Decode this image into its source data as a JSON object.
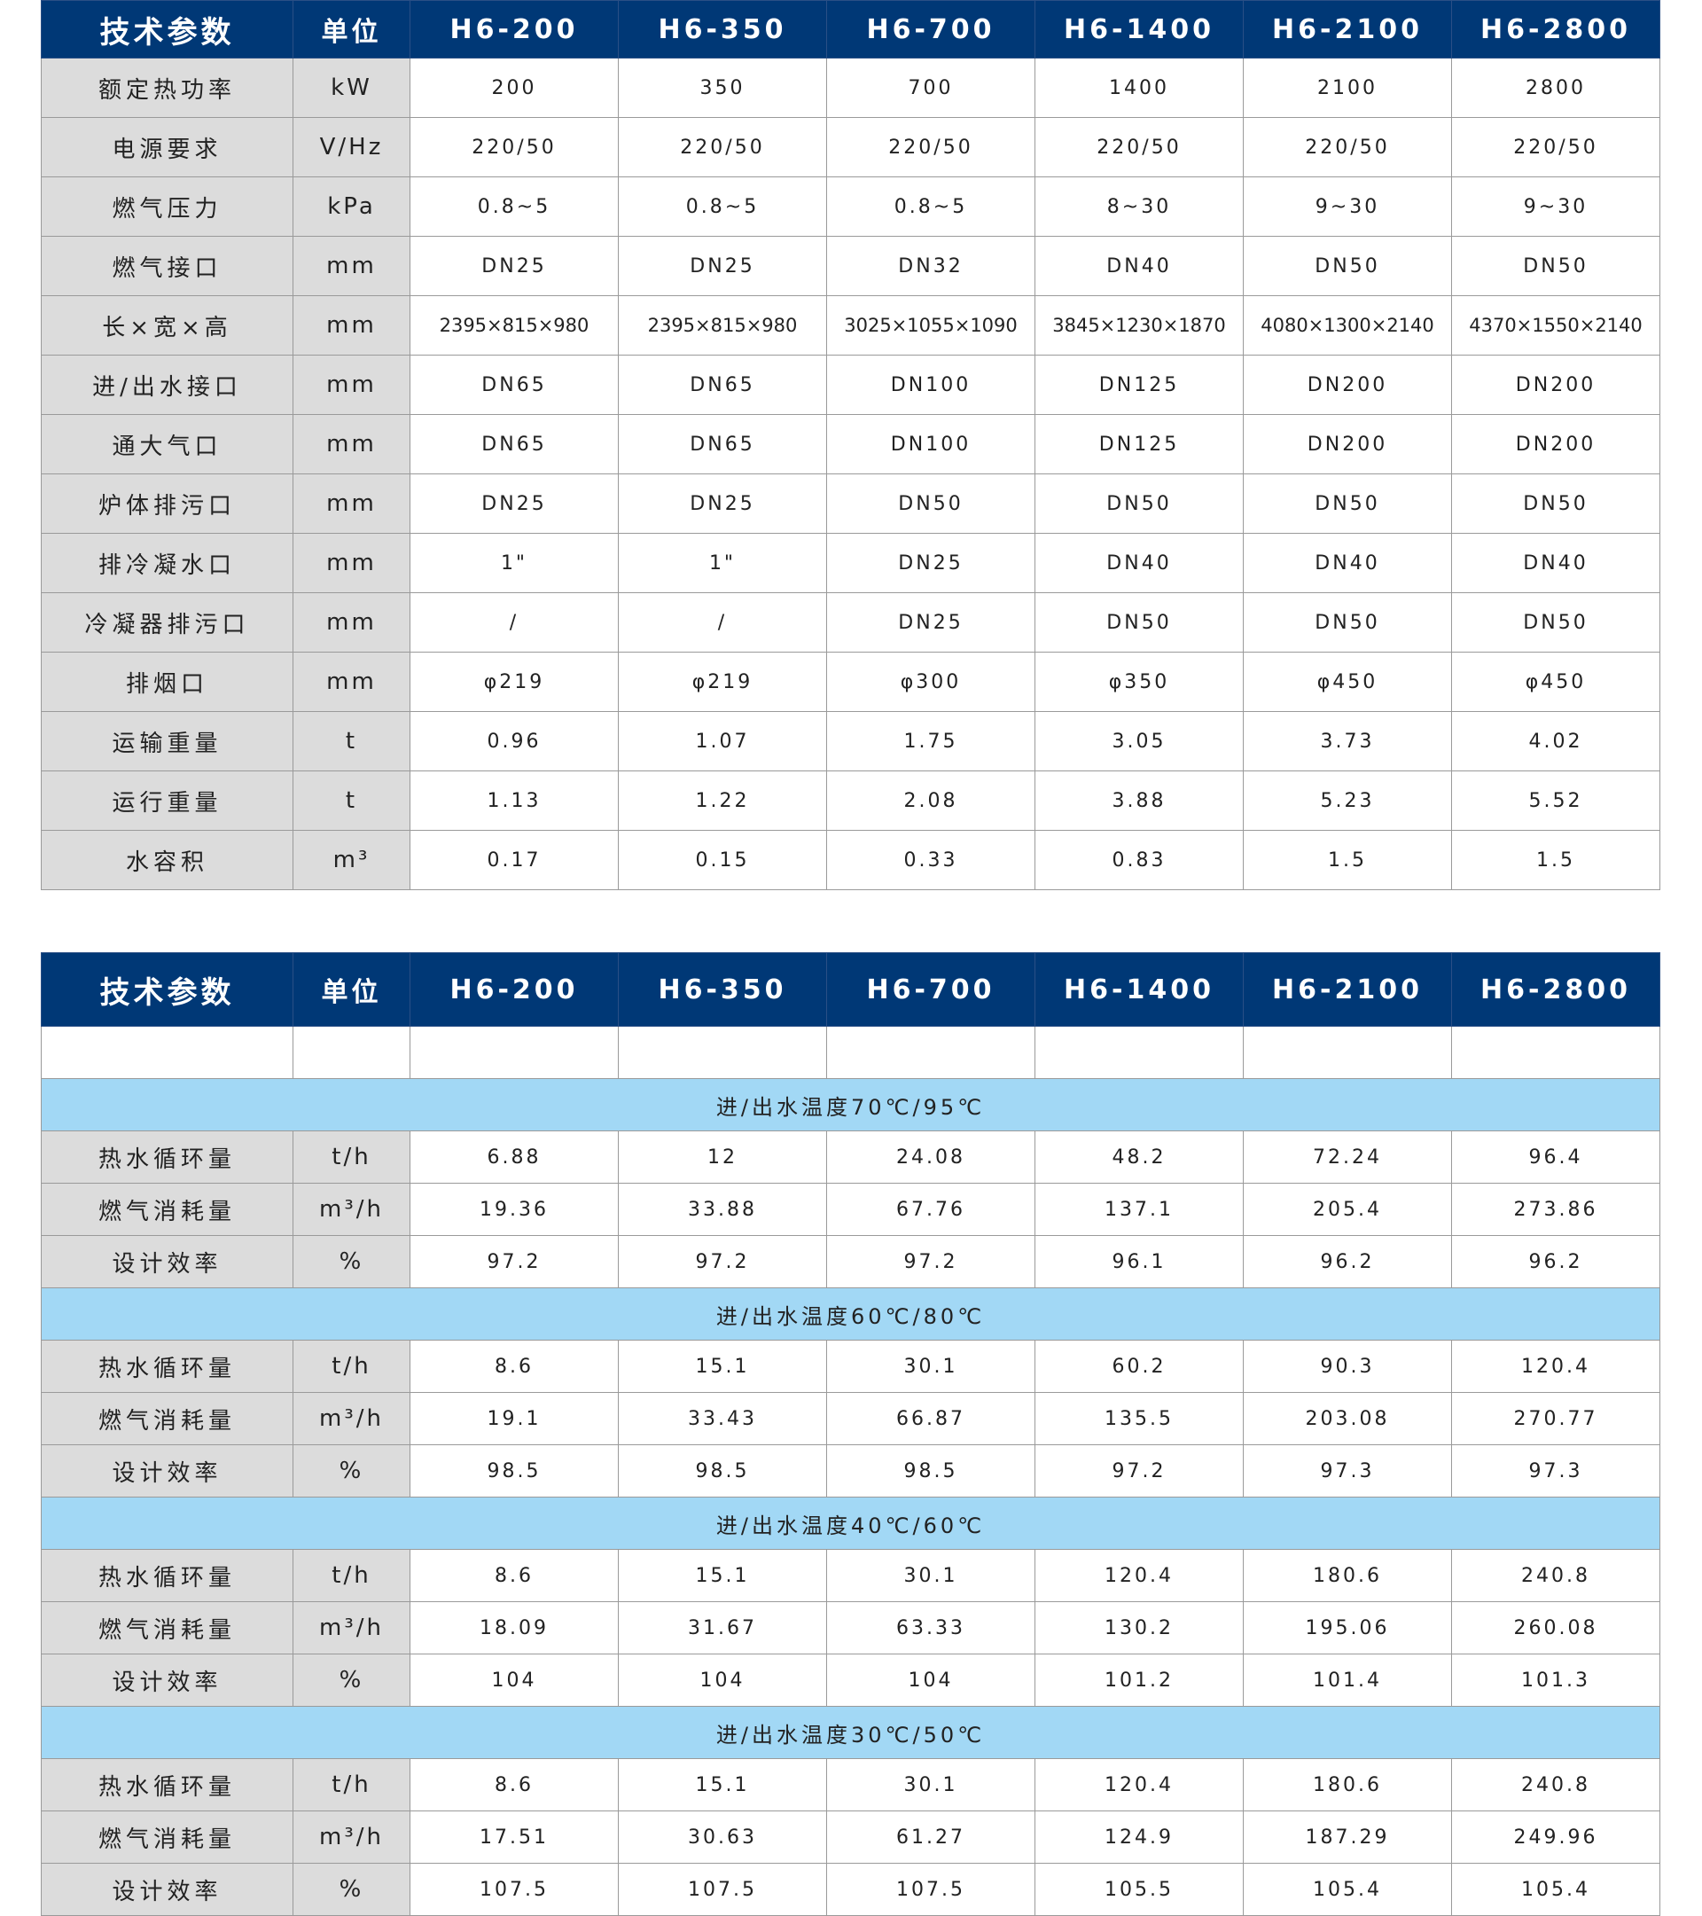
{
  "header": {
    "param_label": "技术参数",
    "unit_label": "单位",
    "models": [
      "H6-200",
      "H6-350",
      "H6-700",
      "H6-1400",
      "H6-2100",
      "H6-2800"
    ]
  },
  "table1": {
    "rows": [
      {
        "label": "额定热功率",
        "unit": "kW",
        "values": [
          "200",
          "350",
          "700",
          "1400",
          "2100",
          "2800"
        ]
      },
      {
        "label": "电源要求",
        "unit": "V/Hz",
        "values": [
          "220/50",
          "220/50",
          "220/50",
          "220/50",
          "220/50",
          "220/50"
        ]
      },
      {
        "label": "燃气压力",
        "unit": "kPa",
        "values": [
          "0.8~5",
          "0.8~5",
          "0.8~5",
          "8~30",
          "9~30",
          "9~30"
        ]
      },
      {
        "label": "燃气接口",
        "unit": "mm",
        "values": [
          "DN25",
          "DN25",
          "DN32",
          "DN40",
          "DN50",
          "DN50"
        ]
      },
      {
        "label": "长×宽×高",
        "unit": "mm",
        "values": [
          "2395×815×980",
          "2395×815×980",
          "3025×1055×1090",
          "3845×1230×1870",
          "4080×1300×2140",
          "4370×1550×2140"
        ]
      },
      {
        "label": "进/出水接口",
        "unit": "mm",
        "values": [
          "DN65",
          "DN65",
          "DN100",
          "DN125",
          "DN200",
          "DN200"
        ]
      },
      {
        "label": "通大气口",
        "unit": "mm",
        "values": [
          "DN65",
          "DN65",
          "DN100",
          "DN125",
          "DN200",
          "DN200"
        ]
      },
      {
        "label": "炉体排污口",
        "unit": "mm",
        "values": [
          "DN25",
          "DN25",
          "DN50",
          "DN50",
          "DN50",
          "DN50"
        ]
      },
      {
        "label": "排冷凝水口",
        "unit": "mm",
        "values": [
          "1\"",
          "1\"",
          "DN25",
          "DN40",
          "DN40",
          "DN40"
        ]
      },
      {
        "label": "冷凝器排污口",
        "unit": "mm",
        "values": [
          "/",
          "/",
          "DN25",
          "DN50",
          "DN50",
          "DN50"
        ]
      },
      {
        "label": "排烟口",
        "unit": "mm",
        "values": [
          "φ219",
          "φ219",
          "φ300",
          "φ350",
          "φ450",
          "φ450"
        ]
      },
      {
        "label": "运输重量",
        "unit": "t",
        "values": [
          "0.96",
          "1.07",
          "1.75",
          "3.05",
          "3.73",
          "4.02"
        ]
      },
      {
        "label": "运行重量",
        "unit": "t",
        "values": [
          "1.13",
          "1.22",
          "2.08",
          "3.88",
          "5.23",
          "5.52"
        ]
      },
      {
        "label": "水容积",
        "unit": "m³",
        "values": [
          "0.17",
          "0.15",
          "0.33",
          "0.83",
          "1.5",
          "1.5"
        ]
      }
    ]
  },
  "table2": {
    "sections": [
      {
        "title": "进/出水温度70℃/95℃",
        "rows": [
          {
            "label": "热水循环量",
            "unit": "t/h",
            "values": [
              "6.88",
              "12",
              "24.08",
              "48.2",
              "72.24",
              "96.4"
            ]
          },
          {
            "label": "燃气消耗量",
            "unit": "m³/h",
            "values": [
              "19.36",
              "33.88",
              "67.76",
              "137.1",
              "205.4",
              "273.86"
            ]
          },
          {
            "label": "设计效率",
            "unit": "%",
            "values": [
              "97.2",
              "97.2",
              "97.2",
              "96.1",
              "96.2",
              "96.2"
            ]
          }
        ]
      },
      {
        "title": "进/出水温度60℃/80℃",
        "rows": [
          {
            "label": "热水循环量",
            "unit": "t/h",
            "values": [
              "8.6",
              "15.1",
              "30.1",
              "60.2",
              "90.3",
              "120.4"
            ]
          },
          {
            "label": "燃气消耗量",
            "unit": "m³/h",
            "values": [
              "19.1",
              "33.43",
              "66.87",
              "135.5",
              "203.08",
              "270.77"
            ]
          },
          {
            "label": "设计效率",
            "unit": "%",
            "values": [
              "98.5",
              "98.5",
              "98.5",
              "97.2",
              "97.3",
              "97.3"
            ]
          }
        ]
      },
      {
        "title": "进/出水温度40℃/60℃",
        "rows": [
          {
            "label": "热水循环量",
            "unit": "t/h",
            "values": [
              "8.6",
              "15.1",
              "30.1",
              "120.4",
              "180.6",
              "240.8"
            ]
          },
          {
            "label": "燃气消耗量",
            "unit": "m³/h",
            "values": [
              "18.09",
              "31.67",
              "63.33",
              "130.2",
              "195.06",
              "260.08"
            ]
          },
          {
            "label": "设计效率",
            "unit": "%",
            "values": [
              "104",
              "104",
              "104",
              "101.2",
              "101.4",
              "101.3"
            ]
          }
        ]
      },
      {
        "title": "进/出水温度30℃/50℃",
        "rows": [
          {
            "label": "热水循环量",
            "unit": "t/h",
            "values": [
              "8.6",
              "15.1",
              "30.1",
              "120.4",
              "180.6",
              "240.8"
            ]
          },
          {
            "label": "燃气消耗量",
            "unit": "m³/h",
            "values": [
              "17.51",
              "30.63",
              "61.27",
              "124.9",
              "187.29",
              "249.96"
            ]
          },
          {
            "label": "设计效率",
            "unit": "%",
            "values": [
              "107.5",
              "107.5",
              "107.5",
              "105.5",
              "105.4",
              "105.4"
            ]
          }
        ]
      }
    ]
  },
  "colors": {
    "header_bg": "#003876",
    "label_bg": "#dcdcdc",
    "section_bg": "#a2d8f5"
  }
}
